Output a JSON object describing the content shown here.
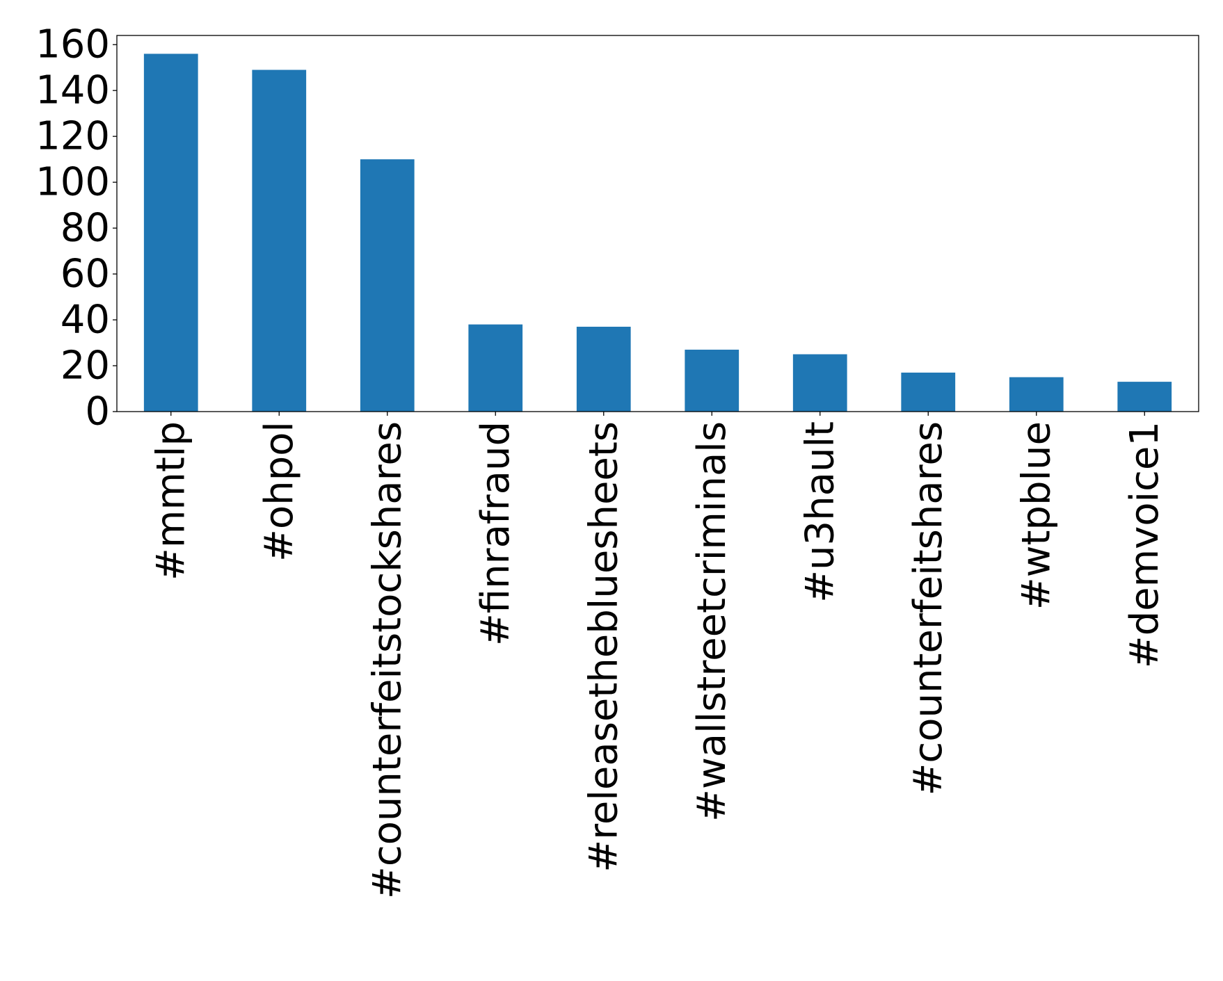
{
  "chart_data": {
    "type": "bar",
    "title": "",
    "xlabel": "",
    "ylabel": "",
    "categories": [
      "#mmtlp",
      "#ohpol",
      "#counterfeitstockshares",
      "#finrafraud",
      "#releasethebluesheets",
      "#wallstreetcriminals",
      "#u3hault",
      "#counterfeitshares",
      "#wtpblue",
      "#demvoice1"
    ],
    "values": [
      156,
      149,
      110,
      38,
      37,
      27,
      25,
      17,
      15,
      13
    ],
    "ylim": [
      0,
      164
    ],
    "yticks": [
      0,
      20,
      40,
      60,
      80,
      100,
      120,
      140,
      160
    ],
    "bar_color": "#1f77b4",
    "grid": false,
    "legend": "none"
  }
}
